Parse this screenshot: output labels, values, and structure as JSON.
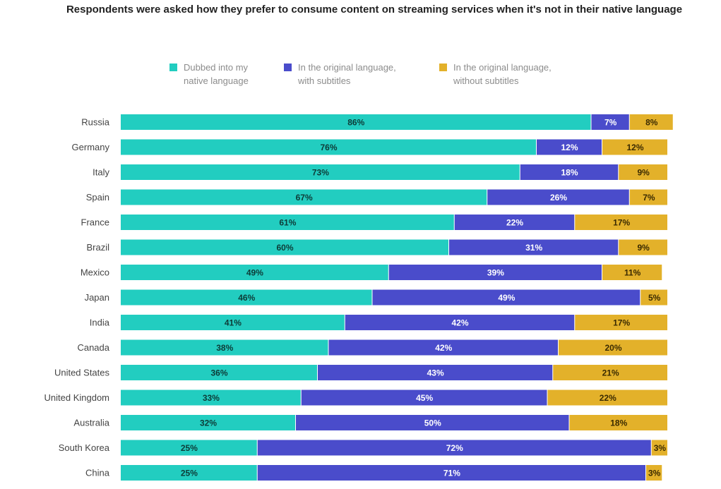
{
  "chart_data": {
    "type": "bar",
    "orientation": "horizontal",
    "stacked": true,
    "title": "Respondents were asked how they prefer to consume content on streaming services when it's not in their native language",
    "xlabel": "",
    "ylabel": "",
    "xlim": [
      0,
      100
    ],
    "legend_position": "top",
    "grid": false,
    "categories": [
      "Russia",
      "Germany",
      "Italy",
      "Spain",
      "France",
      "Brazil",
      "Mexico",
      "Japan",
      "India",
      "Canada",
      "United States",
      "United Kingdom",
      "Australia",
      "South Korea",
      "China"
    ],
    "series": [
      {
        "name": "Dubbed into my\nnative language",
        "color": "#22cdc0",
        "label_color": "#0d3b37",
        "values": [
          86,
          76,
          73,
          67,
          61,
          60,
          49,
          46,
          41,
          38,
          36,
          33,
          32,
          25,
          25
        ]
      },
      {
        "name": "In the original language,\nwith subtitles",
        "color": "#4a4ccb",
        "label_color": "#ffffff",
        "values": [
          7,
          12,
          18,
          26,
          22,
          31,
          39,
          49,
          42,
          42,
          43,
          45,
          50,
          72,
          71
        ]
      },
      {
        "name": "In the original language,\nwithout subtitles",
        "color": "#e3b12a",
        "label_color": "#3a2a00",
        "values": [
          8,
          12,
          9,
          7,
          17,
          9,
          11,
          5,
          17,
          20,
          21,
          22,
          18,
          3,
          3
        ]
      }
    ]
  }
}
